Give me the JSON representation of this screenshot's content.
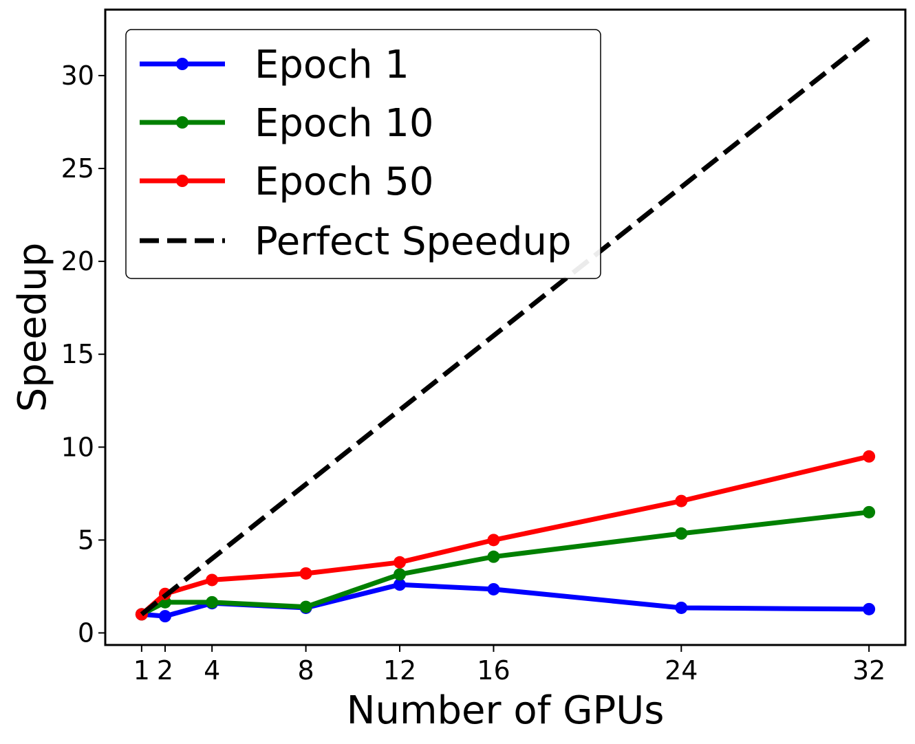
{
  "chart_data": {
    "type": "line",
    "xlabel": "Number of GPUs",
    "ylabel": "Speedup",
    "x_ticks": [
      1,
      2,
      4,
      8,
      12,
      16,
      24,
      32
    ],
    "y_ticks": [
      0,
      5,
      10,
      15,
      20,
      25,
      30
    ],
    "xlim": [
      -0.55,
      33.55
    ],
    "ylim": [
      -0.65,
      33.55
    ],
    "grid": false,
    "legend_position": "top-left",
    "series": [
      {
        "name": "Epoch 1",
        "color": "#0000ff",
        "style": "solid-marker",
        "x": [
          1,
          2,
          4,
          8,
          12,
          16,
          24,
          32
        ],
        "y": [
          1.0,
          0.9,
          1.6,
          1.35,
          2.6,
          2.35,
          1.35,
          1.28
        ]
      },
      {
        "name": "Epoch 10",
        "color": "#008000",
        "style": "solid-marker",
        "x": [
          1,
          2,
          4,
          8,
          12,
          16,
          24,
          32
        ],
        "y": [
          1.0,
          1.65,
          1.65,
          1.4,
          3.15,
          4.1,
          5.35,
          6.5
        ]
      },
      {
        "name": "Epoch 50",
        "color": "#ff0000",
        "style": "solid-marker",
        "x": [
          1,
          2,
          4,
          8,
          12,
          16,
          24,
          32
        ],
        "y": [
          1.0,
          2.1,
          2.85,
          3.2,
          3.8,
          5.0,
          7.1,
          9.5
        ]
      },
      {
        "name": "Perfect Speedup",
        "color": "#000000",
        "style": "dashed",
        "x": [
          1,
          32
        ],
        "y": [
          1,
          32
        ]
      }
    ]
  }
}
